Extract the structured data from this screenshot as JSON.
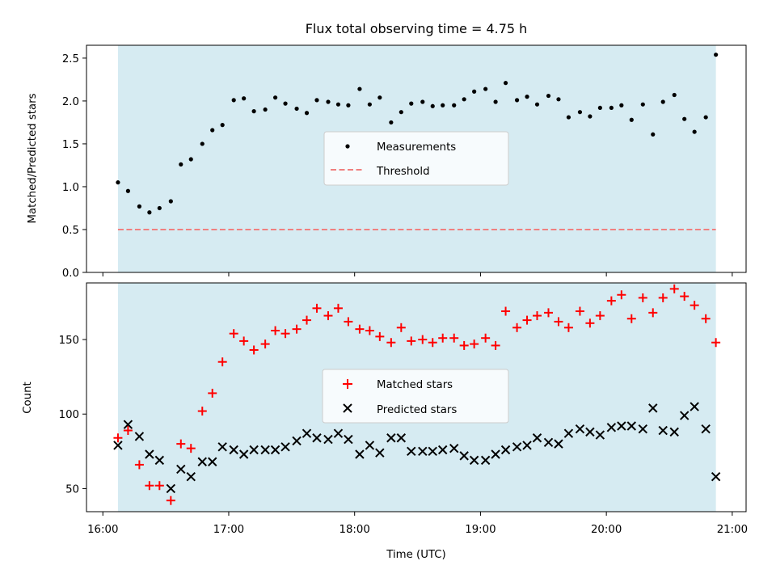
{
  "chart_data": [
    {
      "type": "scatter",
      "title": "Flux total observing time = 4.75 h",
      "xlabel": "",
      "ylabel": "Matched/Predicted stars",
      "ylim": [
        0,
        2.65
      ],
      "yticks": [
        "0.0",
        "0.5",
        "1.0",
        "1.5",
        "2.0",
        "2.5"
      ],
      "xlim_hours": [
        15.87,
        21.11
      ],
      "shaded_span_hours": [
        16.12,
        20.87
      ],
      "shade_color": "#add8e6",
      "legend_position": "center",
      "series": [
        {
          "name": "Measurements",
          "marker": "dot",
          "color": "#000000",
          "points": [
            [
              16.12,
              1.05
            ],
            [
              16.2,
              0.95
            ],
            [
              16.29,
              0.77
            ],
            [
              16.37,
              0.7
            ],
            [
              16.45,
              0.75
            ],
            [
              16.54,
              0.83
            ],
            [
              16.62,
              1.26
            ],
            [
              16.7,
              1.32
            ],
            [
              16.79,
              1.5
            ],
            [
              16.87,
              1.66
            ],
            [
              16.95,
              1.72
            ],
            [
              17.04,
              2.01
            ],
            [
              17.12,
              2.03
            ],
            [
              17.2,
              1.88
            ],
            [
              17.29,
              1.9
            ],
            [
              17.37,
              2.04
            ],
            [
              17.45,
              1.97
            ],
            [
              17.54,
              1.91
            ],
            [
              17.62,
              1.86
            ],
            [
              17.7,
              2.01
            ],
            [
              17.79,
              1.99
            ],
            [
              17.87,
              1.96
            ],
            [
              17.95,
              1.95
            ],
            [
              18.04,
              2.14
            ],
            [
              18.12,
              1.96
            ],
            [
              18.2,
              2.04
            ],
            [
              18.29,
              1.75
            ],
            [
              18.37,
              1.87
            ],
            [
              18.45,
              1.97
            ],
            [
              18.54,
              1.99
            ],
            [
              18.62,
              1.94
            ],
            [
              18.7,
              1.95
            ],
            [
              18.79,
              1.95
            ],
            [
              18.87,
              2.02
            ],
            [
              18.95,
              2.11
            ],
            [
              19.04,
              2.14
            ],
            [
              19.12,
              1.99
            ],
            [
              19.2,
              2.21
            ],
            [
              19.29,
              2.01
            ],
            [
              19.37,
              2.05
            ],
            [
              19.45,
              1.96
            ],
            [
              19.54,
              2.06
            ],
            [
              19.62,
              2.02
            ],
            [
              19.7,
              1.81
            ],
            [
              19.79,
              1.87
            ],
            [
              19.87,
              1.82
            ],
            [
              19.95,
              1.92
            ],
            [
              20.04,
              1.92
            ],
            [
              20.12,
              1.95
            ],
            [
              20.2,
              1.78
            ],
            [
              20.29,
              1.96
            ],
            [
              20.37,
              1.61
            ],
            [
              20.45,
              1.99
            ],
            [
              20.54,
              2.07
            ],
            [
              20.62,
              1.79
            ],
            [
              20.7,
              1.64
            ],
            [
              20.79,
              1.81
            ],
            [
              20.87,
              2.54
            ]
          ]
        },
        {
          "name": "Threshold",
          "style": "dashed-line",
          "color": "#f08080",
          "y": 0.5,
          "x_hours": [
            16.12,
            20.87
          ]
        }
      ]
    },
    {
      "type": "scatter",
      "xlabel": "Time (UTC)",
      "ylabel": "Count",
      "ylim": [
        34.5,
        188
      ],
      "yticks": [
        "50",
        "100",
        "150"
      ],
      "xticks": [
        "16:00",
        "17:00",
        "18:00",
        "19:00",
        "20:00",
        "21:00"
      ],
      "xtick_hours": [
        16,
        17,
        18,
        19,
        20,
        21
      ],
      "xlim_hours": [
        15.87,
        21.11
      ],
      "shaded_span_hours": [
        16.12,
        20.87
      ],
      "shade_color": "#add8e6",
      "legend_position": "center",
      "series": [
        {
          "name": "Matched stars",
          "marker": "plus",
          "color": "#ff0000",
          "points": [
            [
              16.12,
              84
            ],
            [
              16.2,
              89
            ],
            [
              16.29,
              66
            ],
            [
              16.37,
              52
            ],
            [
              16.45,
              52
            ],
            [
              16.54,
              42
            ],
            [
              16.62,
              80
            ],
            [
              16.7,
              77
            ],
            [
              16.79,
              102
            ],
            [
              16.87,
              114
            ],
            [
              16.95,
              135
            ],
            [
              17.04,
              154
            ],
            [
              17.12,
              149
            ],
            [
              17.2,
              143
            ],
            [
              17.29,
              147
            ],
            [
              17.37,
              156
            ],
            [
              17.45,
              154
            ],
            [
              17.54,
              157
            ],
            [
              17.62,
              163
            ],
            [
              17.7,
              171
            ],
            [
              17.79,
              166
            ],
            [
              17.87,
              171
            ],
            [
              17.95,
              162
            ],
            [
              18.04,
              157
            ],
            [
              18.12,
              156
            ],
            [
              18.2,
              152
            ],
            [
              18.29,
              148
            ],
            [
              18.37,
              158
            ],
            [
              18.45,
              149
            ],
            [
              18.54,
              150
            ],
            [
              18.62,
              148
            ],
            [
              18.7,
              151
            ],
            [
              18.79,
              151
            ],
            [
              18.87,
              146
            ],
            [
              18.95,
              147
            ],
            [
              19.04,
              151
            ],
            [
              19.12,
              146
            ],
            [
              19.2,
              169
            ],
            [
              19.29,
              158
            ],
            [
              19.37,
              163
            ],
            [
              19.45,
              166
            ],
            [
              19.54,
              168
            ],
            [
              19.62,
              162
            ],
            [
              19.7,
              158
            ],
            [
              19.79,
              169
            ],
            [
              19.87,
              161
            ],
            [
              19.95,
              166
            ],
            [
              20.04,
              176
            ],
            [
              20.12,
              180
            ],
            [
              20.2,
              164
            ],
            [
              20.29,
              178
            ],
            [
              20.37,
              168
            ],
            [
              20.45,
              178
            ],
            [
              20.54,
              184
            ],
            [
              20.62,
              179
            ],
            [
              20.7,
              173
            ],
            [
              20.79,
              164
            ],
            [
              20.87,
              148
            ]
          ]
        },
        {
          "name": "Predicted stars",
          "marker": "x",
          "color": "#000000",
          "points": [
            [
              16.12,
              79
            ],
            [
              16.2,
              93
            ],
            [
              16.29,
              85
            ],
            [
              16.37,
              73
            ],
            [
              16.45,
              69
            ],
            [
              16.54,
              50
            ],
            [
              16.62,
              63
            ],
            [
              16.7,
              58
            ],
            [
              16.79,
              68
            ],
            [
              16.87,
              68
            ],
            [
              16.95,
              78
            ],
            [
              17.04,
              76
            ],
            [
              17.12,
              73
            ],
            [
              17.2,
              76
            ],
            [
              17.29,
              76
            ],
            [
              17.37,
              76
            ],
            [
              17.45,
              78
            ],
            [
              17.54,
              82
            ],
            [
              17.62,
              87
            ],
            [
              17.7,
              84
            ],
            [
              17.79,
              83
            ],
            [
              17.87,
              87
            ],
            [
              17.95,
              83
            ],
            [
              18.04,
              73
            ],
            [
              18.12,
              79
            ],
            [
              18.2,
              74
            ],
            [
              18.29,
              84
            ],
            [
              18.37,
              84
            ],
            [
              18.45,
              75
            ],
            [
              18.54,
              75
            ],
            [
              18.62,
              75
            ],
            [
              18.7,
              76
            ],
            [
              18.79,
              77
            ],
            [
              18.87,
              72
            ],
            [
              18.95,
              69
            ],
            [
              19.04,
              69
            ],
            [
              19.12,
              73
            ],
            [
              19.2,
              76
            ],
            [
              19.29,
              78
            ],
            [
              19.37,
              79
            ],
            [
              19.45,
              84
            ],
            [
              19.54,
              81
            ],
            [
              19.62,
              80
            ],
            [
              19.7,
              87
            ],
            [
              19.79,
              90
            ],
            [
              19.87,
              88
            ],
            [
              19.95,
              86
            ],
            [
              20.04,
              91
            ],
            [
              20.12,
              92
            ],
            [
              20.2,
              92
            ],
            [
              20.29,
              90
            ],
            [
              20.37,
              104
            ],
            [
              20.45,
              89
            ],
            [
              20.54,
              88
            ],
            [
              20.62,
              99
            ],
            [
              20.7,
              105
            ],
            [
              20.79,
              90
            ],
            [
              20.87,
              58
            ]
          ]
        }
      ]
    }
  ]
}
